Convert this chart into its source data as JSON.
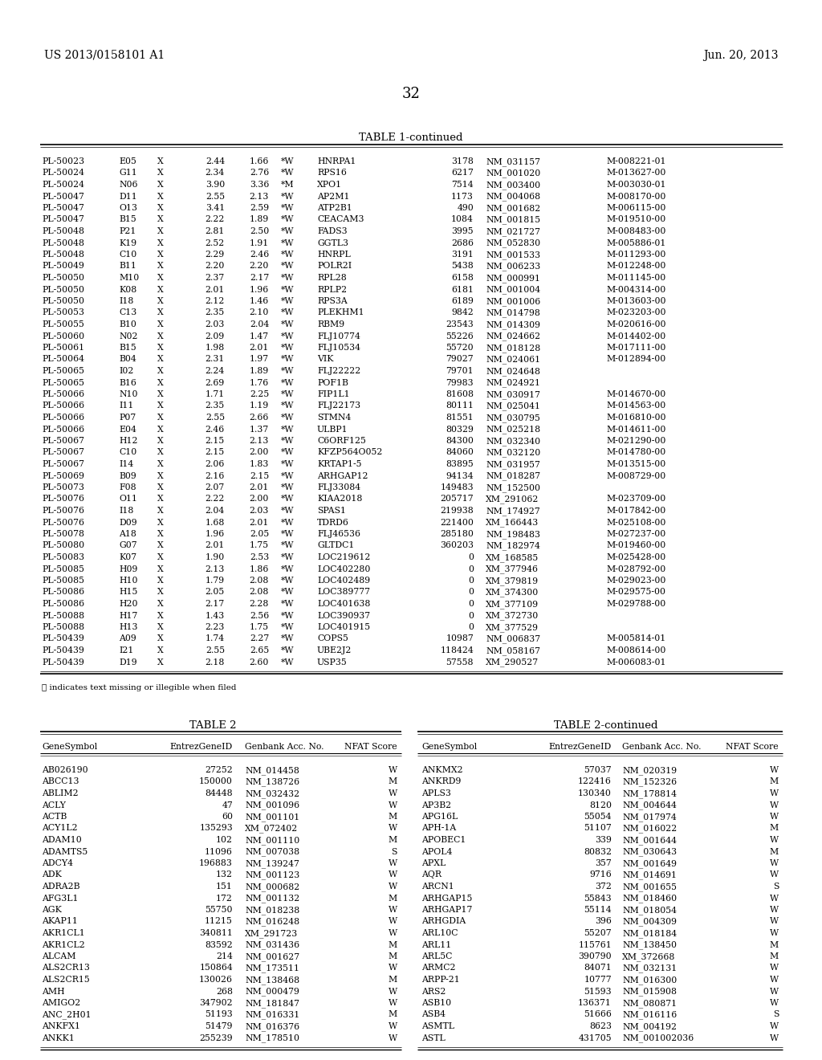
{
  "header_left": "US 2013/0158101 A1",
  "header_right": "Jun. 20, 2013",
  "page_number": "32",
  "table1_title": "TABLE 1-continued",
  "table1_data": [
    [
      "PL-50023",
      "E05",
      "X",
      "2.44",
      "1.66",
      "*W",
      "HNRPA1",
      "3178",
      "NM_031157",
      "M-008221-01"
    ],
    [
      "PL-50024",
      "G11",
      "X",
      "2.34",
      "2.76",
      "*W",
      "RPS16",
      "6217",
      "NM_001020",
      "M-013627-00"
    ],
    [
      "PL-50024",
      "N06",
      "X",
      "3.90",
      "3.36",
      "*M",
      "XPO1",
      "7514",
      "NM_003400",
      "M-003030-01"
    ],
    [
      "PL-50047",
      "D11",
      "X",
      "2.55",
      "2.13",
      "*W",
      "AP2M1",
      "1173",
      "NM_004068",
      "M-008170-00"
    ],
    [
      "PL-50047",
      "O13",
      "X",
      "3.41",
      "2.59",
      "*W",
      "ATP2B1",
      "490",
      "NM_001682",
      "M-006115-00"
    ],
    [
      "PL-50047",
      "B15",
      "X",
      "2.22",
      "1.89",
      "*W",
      "CEACAM3",
      "1084",
      "NM_001815",
      "M-019510-00"
    ],
    [
      "PL-50048",
      "P21",
      "X",
      "2.81",
      "2.50",
      "*W",
      "FADS3",
      "3995",
      "NM_021727",
      "M-008483-00"
    ],
    [
      "PL-50048",
      "K19",
      "X",
      "2.52",
      "1.91",
      "*W",
      "GGTL3",
      "2686",
      "NM_052830",
      "M-005886-01"
    ],
    [
      "PL-50048",
      "C10",
      "X",
      "2.29",
      "2.46",
      "*W",
      "HNRPL",
      "3191",
      "NM_001533",
      "M-011293-00"
    ],
    [
      "PL-50049",
      "B11",
      "X",
      "2.20",
      "2.20",
      "*W",
      "POLR2I",
      "5438",
      "NM_006233",
      "M-012248-00"
    ],
    [
      "PL-50050",
      "M10",
      "X",
      "2.37",
      "2.17",
      "*W",
      "RPL28",
      "6158",
      "NM_000991",
      "M-011145-00"
    ],
    [
      "PL-50050",
      "K08",
      "X",
      "2.01",
      "1.96",
      "*W",
      "RPLP2",
      "6181",
      "NM_001004",
      "M-004314-00"
    ],
    [
      "PL-50050",
      "I18",
      "X",
      "2.12",
      "1.46",
      "*W",
      "RPS3A",
      "6189",
      "NM_001006",
      "M-013603-00"
    ],
    [
      "PL-50053",
      "C13",
      "X",
      "2.35",
      "2.10",
      "*W",
      "PLEKHM1",
      "9842",
      "NM_014798",
      "M-023203-00"
    ],
    [
      "PL-50055",
      "B10",
      "X",
      "2.03",
      "2.04",
      "*W",
      "RBM9",
      "23543",
      "NM_014309",
      "M-020616-00"
    ],
    [
      "PL-50060",
      "N02",
      "X",
      "2.09",
      "1.47",
      "*W",
      "FLJ10774",
      "55226",
      "NM_024662",
      "M-014402-00"
    ],
    [
      "PL-50061",
      "B15",
      "X",
      "1.98",
      "2.01",
      "*W",
      "FLJ10534",
      "55720",
      "NM_018128",
      "M-017111-00"
    ],
    [
      "PL-50064",
      "B04",
      "X",
      "2.31",
      "1.97",
      "*W",
      "VIK",
      "79027",
      "NM_024061",
      "M-012894-00"
    ],
    [
      "PL-50065",
      "I02",
      "X",
      "2.24",
      "1.89",
      "*W",
      "FLJ22222",
      "79701",
      "NM_024648",
      ""
    ],
    [
      "PL-50065",
      "B16",
      "X",
      "2.69",
      "1.76",
      "*W",
      "POF1B",
      "79983",
      "NM_024921",
      ""
    ],
    [
      "PL-50066",
      "N10",
      "X",
      "1.71",
      "2.25",
      "*W",
      "FIP1L1",
      "81608",
      "NM_030917",
      "M-014670-00"
    ],
    [
      "PL-50066",
      "I11",
      "X",
      "2.35",
      "1.19",
      "*W",
      "FLJ22173",
      "80111",
      "NM_025041",
      "M-014563-00"
    ],
    [
      "PL-50066",
      "P07",
      "X",
      "2.55",
      "2.66",
      "*W",
      "STMN4",
      "81551",
      "NM_030795",
      "M-016810-00"
    ],
    [
      "PL-50066",
      "E04",
      "X",
      "2.46",
      "1.37",
      "*W",
      "ULBP1",
      "80329",
      "NM_025218",
      "M-014611-00"
    ],
    [
      "PL-50067",
      "H12",
      "X",
      "2.15",
      "2.13",
      "*W",
      "C6ORF125",
      "84300",
      "NM_032340",
      "M-021290-00"
    ],
    [
      "PL-50067",
      "C10",
      "X",
      "2.15",
      "2.00",
      "*W",
      "KFZP564O052",
      "84060",
      "NM_032120",
      "M-014780-00"
    ],
    [
      "PL-50067",
      "I14",
      "X",
      "2.06",
      "1.83",
      "*W",
      "KRTAP1-5",
      "83895",
      "NM_031957",
      "M-013515-00"
    ],
    [
      "PL-50069",
      "B09",
      "X",
      "2.16",
      "2.15",
      "*W",
      "ARHGAP12",
      "94134",
      "NM_018287",
      "M-008729-00"
    ],
    [
      "PL-50073",
      "F08",
      "X",
      "2.07",
      "2.01",
      "*W",
      "FLJ33084",
      "149483",
      "NM_152500",
      ""
    ],
    [
      "PL-50076",
      "O11",
      "X",
      "2.22",
      "2.00",
      "*W",
      "KIAA2018",
      "205717",
      "XM_291062",
      "M-023709-00"
    ],
    [
      "PL-50076",
      "I18",
      "X",
      "2.04",
      "2.03",
      "*W",
      "SPAS1",
      "219938",
      "NM_174927",
      "M-017842-00"
    ],
    [
      "PL-50076",
      "D09",
      "X",
      "1.68",
      "2.01",
      "*W",
      "TDRD6",
      "221400",
      "XM_166443",
      "M-025108-00"
    ],
    [
      "PL-50078",
      "A18",
      "X",
      "1.96",
      "2.05",
      "*W",
      "FLJ46536",
      "285180",
      "NM_198483",
      "M-027237-00"
    ],
    [
      "PL-50080",
      "G07",
      "X",
      "2.01",
      "1.75",
      "*W",
      "GLTDC1",
      "360203",
      "NM_182974",
      "M-019460-00"
    ],
    [
      "PL-50083",
      "K07",
      "X",
      "1.90",
      "2.53",
      "*W",
      "LOC219612",
      "0",
      "XM_168585",
      "M-025428-00"
    ],
    [
      "PL-50085",
      "H09",
      "X",
      "2.13",
      "1.86",
      "*W",
      "LOC402280",
      "0",
      "XM_377946",
      "M-028792-00"
    ],
    [
      "PL-50085",
      "H10",
      "X",
      "1.79",
      "2.08",
      "*W",
      "LOC402489",
      "0",
      "XM_379819",
      "M-029023-00"
    ],
    [
      "PL-50086",
      "H15",
      "X",
      "2.05",
      "2.08",
      "*W",
      "LOC389777",
      "0",
      "XM_374300",
      "M-029575-00"
    ],
    [
      "PL-50086",
      "H20",
      "X",
      "2.17",
      "2.28",
      "*W",
      "LOC401638",
      "0",
      "XM_377109",
      "M-029788-00"
    ],
    [
      "PL-50088",
      "H17",
      "X",
      "1.43",
      "2.56",
      "*W",
      "LOC390937",
      "0",
      "XM_372730",
      ""
    ],
    [
      "PL-50088",
      "H13",
      "X",
      "2.23",
      "1.75",
      "*W",
      "LOC401915",
      "0",
      "XM_377529",
      ""
    ],
    [
      "PL-50439",
      "A09",
      "X",
      "1.74",
      "2.27",
      "*W",
      "COPS5",
      "10987",
      "NM_006837",
      "M-005814-01"
    ],
    [
      "PL-50439",
      "I21",
      "X",
      "2.55",
      "2.65",
      "*W",
      "UBE2J2",
      "118424",
      "NM_058167",
      "M-008614-00"
    ],
    [
      "PL-50439",
      "D19",
      "X",
      "2.18",
      "2.60",
      "*W",
      "USP35",
      "57558",
      "XM_290527",
      "M-006083-01"
    ]
  ],
  "footnote": "ⓘ indicates text missing or illegible when filed",
  "table2_title": "TABLE 2",
  "table2_cont_title": "TABLE 2-continued",
  "table2_left_cols": [
    "GeneSymbol",
    "EntrezGeneID",
    "Genbank Acc. No.",
    "NFAT Score"
  ],
  "table2_right_cols": [
    "GeneSymbol",
    "EntrezGeneID",
    "Genbank Acc. No.",
    "NFAT Score"
  ],
  "table2_data_left": [
    [
      "AB026190",
      "27252",
      "NM_014458",
      "W"
    ],
    [
      "ABCC13",
      "150000",
      "NM_138726",
      "M"
    ],
    [
      "ABLIM2",
      "84448",
      "NM_032432",
      "W"
    ],
    [
      "ACLY",
      "47",
      "NM_001096",
      "W"
    ],
    [
      "ACTB",
      "60",
      "NM_001101",
      "M"
    ],
    [
      "ACY1L2",
      "135293",
      "XM_072402",
      "W"
    ],
    [
      "ADAM10",
      "102",
      "NM_001110",
      "M"
    ],
    [
      "ADAMTS5",
      "11096",
      "NM_007038",
      "S"
    ],
    [
      "ADCY4",
      "196883",
      "NM_139247",
      "W"
    ],
    [
      "ADK",
      "132",
      "NM_001123",
      "W"
    ],
    [
      "ADRA2B",
      "151",
      "NM_000682",
      "W"
    ],
    [
      "AFG3L1",
      "172",
      "NM_001132",
      "M"
    ],
    [
      "AGK",
      "55750",
      "NM_018238",
      "W"
    ],
    [
      "AKAP11",
      "11215",
      "NM_016248",
      "W"
    ],
    [
      "AKR1CL1",
      "340811",
      "XM_291723",
      "W"
    ],
    [
      "AKR1CL2",
      "83592",
      "NM_031436",
      "M"
    ],
    [
      "ALCAM",
      "214",
      "NM_001627",
      "M"
    ],
    [
      "ALS2CR13",
      "150864",
      "NM_173511",
      "W"
    ],
    [
      "ALS2CR15",
      "130026",
      "NM_138468",
      "M"
    ],
    [
      "AMH",
      "268",
      "NM_000479",
      "W"
    ],
    [
      "AMIGO2",
      "347902",
      "NM_181847",
      "W"
    ],
    [
      "ANC_2H01",
      "51193",
      "NM_016331",
      "M"
    ],
    [
      "ANKFX1",
      "51479",
      "NM_016376",
      "W"
    ],
    [
      "ANKK1",
      "255239",
      "NM_178510",
      "W"
    ]
  ],
  "table2_data_right": [
    [
      "ANKMX2",
      "57037",
      "NM_020319",
      "W"
    ],
    [
      "ANKRD9",
      "122416",
      "NM_152326",
      "M"
    ],
    [
      "APLS3",
      "130340",
      "NM_178814",
      "W"
    ],
    [
      "AP3B2",
      "8120",
      "NM_004644",
      "W"
    ],
    [
      "APG16L",
      "55054",
      "NM_017974",
      "W"
    ],
    [
      "APH-1A",
      "51107",
      "NM_016022",
      "M"
    ],
    [
      "APOBEC1",
      "339",
      "NM_001644",
      "W"
    ],
    [
      "APOL4",
      "80832",
      "NM_030643",
      "M"
    ],
    [
      "APXL",
      "357",
      "NM_001649",
      "W"
    ],
    [
      "AQR",
      "9716",
      "NM_014691",
      "W"
    ],
    [
      "ARCN1",
      "372",
      "NM_001655",
      "S"
    ],
    [
      "ARHGAP15",
      "55843",
      "NM_018460",
      "W"
    ],
    [
      "ARHGAP17",
      "55114",
      "NM_018054",
      "W"
    ],
    [
      "ARHGDIA",
      "396",
      "NM_004309",
      "W"
    ],
    [
      "ARL10C",
      "55207",
      "NM_018184",
      "W"
    ],
    [
      "ARL11",
      "115761",
      "NM_138450",
      "M"
    ],
    [
      "ARL5C",
      "390790",
      "XM_372668",
      "M"
    ],
    [
      "ARMC2",
      "84071",
      "NM_032131",
      "W"
    ],
    [
      "ARPP-21",
      "10777",
      "NM_016300",
      "W"
    ],
    [
      "ARS2",
      "51593",
      "NM_015908",
      "W"
    ],
    [
      "ASB10",
      "136371",
      "NM_080871",
      "W"
    ],
    [
      "ASB4",
      "51666",
      "NM_016116",
      "S"
    ],
    [
      "ASMTL",
      "8623",
      "NM_004192",
      "W"
    ],
    [
      "ASTL",
      "431705",
      "NM_001002036",
      "W"
    ]
  ],
  "bg_color": "#ffffff",
  "text_color": "#000000",
  "font_size_header": 10,
  "font_size_title": 9.5,
  "font_size_table1": 7.8,
  "font_size_table2": 7.8,
  "font_size_page": 13
}
